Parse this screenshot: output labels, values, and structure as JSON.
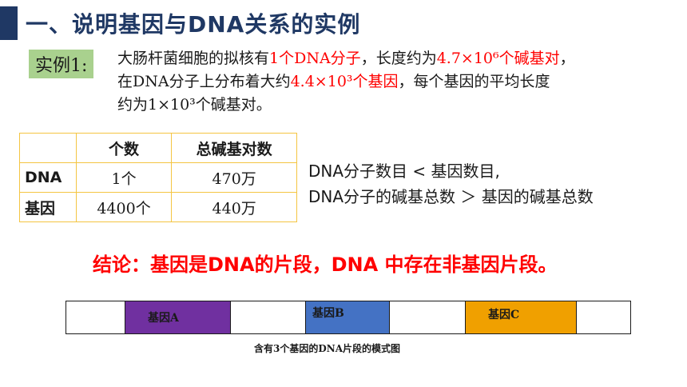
{
  "slide": {
    "title": "一、说明基因与DNA关系的实例",
    "example_label": "实例1:",
    "paragraph": {
      "l1_a": "大肠杆菌细胞的拟核有",
      "l1_red1": "1个DNA分子",
      "l1_b": "，长度约为",
      "l1_red2": "4.7×10⁶个碱基对",
      "l1_c": "，",
      "l2_a": "在DNA分子上分布着大约",
      "l2_red": "4.4×10³个基因",
      "l2_b": "，每个基因的平均长度",
      "l3": "约为1×10³个碱基对。"
    },
    "table": {
      "headers": [
        "",
        "个数",
        "总碱基对数"
      ],
      "rows": [
        {
          "label": "DNA",
          "count": "1个",
          "total": "470万"
        },
        {
          "label": "基因",
          "count": "4400个",
          "total": "440万"
        }
      ]
    },
    "compare": {
      "line1": "DNA分子数目 < 基因数目,",
      "line2": "DNA分子的碱基总数 ＞ 基因的碱基总数"
    },
    "conclusion": "结论：基因是DNA的片段，DNA 中存在非基因片段。",
    "diagram": {
      "gene_a": "基因A",
      "gene_b": "基因B",
      "gene_c": "基因C",
      "caption": "含有3个基因的DNA片段的模式图"
    },
    "colors": {
      "title": "#1f3864",
      "highlight_red": "#ff0000",
      "label_green": "#a9d18e",
      "table_border": "#f4c542",
      "gene_a": "#7030a0",
      "gene_b": "#4472c4",
      "gene_c": "#f0a000"
    }
  }
}
